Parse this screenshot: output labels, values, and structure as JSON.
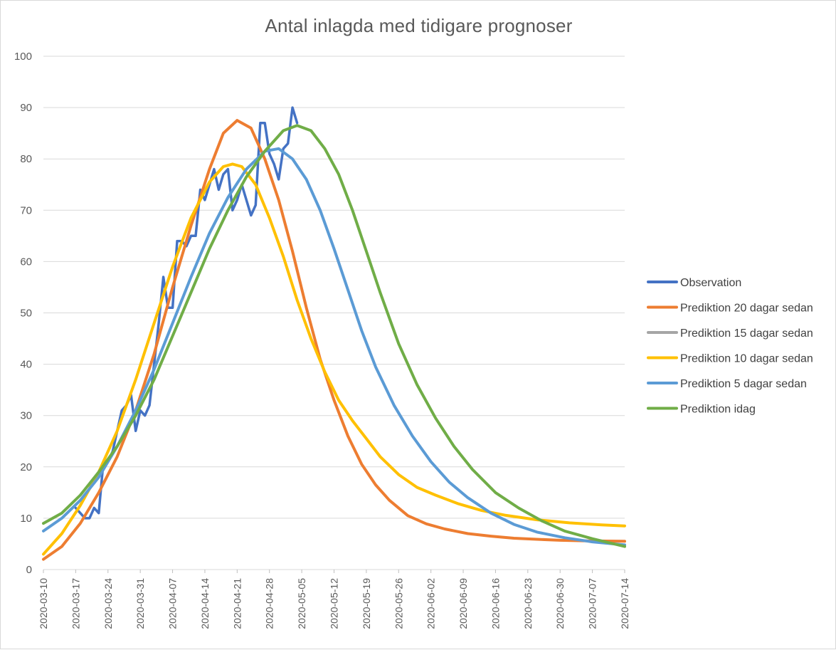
{
  "chart_data": {
    "type": "line",
    "title": "Antal inlagda med tidigare prognoser",
    "xlabel": "",
    "ylabel": "",
    "ylim": [
      0,
      100
    ],
    "yticks": [
      0,
      10,
      20,
      30,
      40,
      50,
      60,
      70,
      80,
      90,
      100
    ],
    "xlim": [
      "2020-03-10",
      "2020-07-14"
    ],
    "x_tick_labels": [
      "2020-03-10",
      "2020-03-17",
      "2020-03-24",
      "2020-03-31",
      "2020-04-07",
      "2020-04-14",
      "2020-04-21",
      "2020-04-28",
      "2020-05-05",
      "2020-05-12",
      "2020-05-19",
      "2020-05-26",
      "2020-06-02",
      "2020-06-09",
      "2020-06-16",
      "2020-06-23",
      "2020-06-30",
      "2020-07-07",
      "2020-07-14"
    ],
    "grid": true,
    "legend_position": "right",
    "series": [
      {
        "name": "Observation",
        "color": "#4472C4",
        "x": [
          "2020-03-17",
          "2020-03-18",
          "2020-03-19",
          "2020-03-20",
          "2020-03-21",
          "2020-03-22",
          "2020-03-23",
          "2020-03-24",
          "2020-03-25",
          "2020-03-26",
          "2020-03-27",
          "2020-03-28",
          "2020-03-29",
          "2020-03-30",
          "2020-03-31",
          "2020-04-01",
          "2020-04-02",
          "2020-04-03",
          "2020-04-04",
          "2020-04-05",
          "2020-04-06",
          "2020-04-07",
          "2020-04-08",
          "2020-04-09",
          "2020-04-10",
          "2020-04-11",
          "2020-04-12",
          "2020-04-13",
          "2020-04-14",
          "2020-04-15",
          "2020-04-16",
          "2020-04-17",
          "2020-04-18",
          "2020-04-19",
          "2020-04-20",
          "2020-04-21",
          "2020-04-22",
          "2020-04-23",
          "2020-04-24",
          "2020-04-25",
          "2020-04-26",
          "2020-04-27",
          "2020-04-28",
          "2020-04-29",
          "2020-04-30",
          "2020-05-01",
          "2020-05-02",
          "2020-05-03",
          "2020-05-04",
          "2020-05-05",
          "2020-05-06"
        ],
        "values": [
          12,
          11,
          10,
          10,
          12,
          11,
          21,
          21,
          23,
          27,
          31,
          32,
          34,
          27,
          31,
          30,
          32,
          40,
          48,
          57,
          51,
          51,
          64,
          64,
          63,
          65,
          65,
          74,
          72,
          75,
          78,
          74,
          77,
          78,
          70,
          72,
          75,
          72,
          69,
          71,
          87,
          87,
          81,
          79,
          76,
          82,
          83,
          90,
          87,
          null,
          null
        ]
      },
      {
        "name": "Prediktion 20 dagar sedan",
        "color": "#ED7D31",
        "x": [
          "2020-03-10",
          "2020-03-14",
          "2020-03-18",
          "2020-03-22",
          "2020-03-26",
          "2020-03-30",
          "2020-04-03",
          "2020-04-07",
          "2020-04-11",
          "2020-04-15",
          "2020-04-18",
          "2020-04-21",
          "2020-04-24",
          "2020-04-27",
          "2020-04-30",
          "2020-05-03",
          "2020-05-06",
          "2020-05-09",
          "2020-05-12",
          "2020-05-15",
          "2020-05-18",
          "2020-05-21",
          "2020-05-24",
          "2020-05-28",
          "2020-06-01",
          "2020-06-05",
          "2020-06-10",
          "2020-06-15",
          "2020-06-20",
          "2020-06-25",
          "2020-06-30",
          "2020-07-05",
          "2020-07-14"
        ],
        "values": [
          2,
          4.5,
          9,
          15,
          22,
          31,
          42,
          55,
          67,
          78,
          85,
          87.5,
          86,
          80,
          72,
          62,
          51,
          41,
          33,
          26,
          20.5,
          16.5,
          13.5,
          10.5,
          8.9,
          7.9,
          7,
          6.5,
          6.1,
          5.9,
          5.7,
          5.6,
          5.5
        ]
      },
      {
        "name": "Prediktion 15 dagar sedan",
        "color": "#A5A5A5",
        "x": [],
        "values": []
      },
      {
        "name": "Prediktion 10 dagar sedan",
        "color": "#FFC000",
        "x": [
          "2020-03-10",
          "2020-03-14",
          "2020-03-18",
          "2020-03-22",
          "2020-03-26",
          "2020-03-30",
          "2020-04-03",
          "2020-04-07",
          "2020-04-11",
          "2020-04-15",
          "2020-04-18",
          "2020-04-20",
          "2020-04-22",
          "2020-04-25",
          "2020-04-28",
          "2020-05-01",
          "2020-05-04",
          "2020-05-07",
          "2020-05-10",
          "2020-05-13",
          "2020-05-16",
          "2020-05-19",
          "2020-05-22",
          "2020-05-26",
          "2020-05-30",
          "2020-06-03",
          "2020-06-08",
          "2020-06-13",
          "2020-06-18",
          "2020-06-25",
          "2020-07-02",
          "2020-07-09",
          "2020-07-14"
        ],
        "values": [
          3,
          7,
          12.5,
          19,
          27,
          37,
          48,
          59,
          68.5,
          75.5,
          78.5,
          79,
          78.5,
          75,
          68.5,
          61,
          52.5,
          45,
          38.5,
          33,
          29,
          25.5,
          22,
          18.5,
          16,
          14.5,
          12.8,
          11.5,
          10.6,
          9.7,
          9.1,
          8.7,
          8.5
        ]
      },
      {
        "name": "Prediktion 5 dagar sedan",
        "color": "#5B9BD5",
        "x": [
          "2020-03-10",
          "2020-03-14",
          "2020-03-18",
          "2020-03-22",
          "2020-03-26",
          "2020-03-30",
          "2020-04-03",
          "2020-04-07",
          "2020-04-11",
          "2020-04-15",
          "2020-04-19",
          "2020-04-23",
          "2020-04-27",
          "2020-04-30",
          "2020-05-03",
          "2020-05-06",
          "2020-05-09",
          "2020-05-12",
          "2020-05-15",
          "2020-05-18",
          "2020-05-21",
          "2020-05-25",
          "2020-05-29",
          "2020-06-02",
          "2020-06-06",
          "2020-06-10",
          "2020-06-15",
          "2020-06-20",
          "2020-06-25",
          "2020-07-01",
          "2020-07-07",
          "2020-07-14"
        ],
        "values": [
          7.5,
          10,
          13.5,
          18,
          24,
          31,
          39,
          48,
          57,
          65.5,
          72.5,
          78,
          81.5,
          82,
          80,
          76,
          70,
          62.5,
          54.5,
          46.5,
          39.5,
          32,
          26,
          21,
          17,
          14,
          11,
          8.8,
          7.3,
          6.2,
          5.4,
          4.8
        ]
      },
      {
        "name": "Prediktion idag",
        "color": "#70AD47",
        "x": [
          "2020-03-10",
          "2020-03-14",
          "2020-03-18",
          "2020-03-22",
          "2020-03-26",
          "2020-03-30",
          "2020-04-03",
          "2020-04-07",
          "2020-04-11",
          "2020-04-15",
          "2020-04-19",
          "2020-04-23",
          "2020-04-27",
          "2020-05-01",
          "2020-05-04",
          "2020-05-07",
          "2020-05-10",
          "2020-05-13",
          "2020-05-16",
          "2020-05-19",
          "2020-05-22",
          "2020-05-26",
          "2020-05-30",
          "2020-06-03",
          "2020-06-07",
          "2020-06-11",
          "2020-06-16",
          "2020-06-21",
          "2020-06-26",
          "2020-07-01",
          "2020-07-07",
          "2020-07-14"
        ],
        "values": [
          9,
          11,
          14.5,
          19,
          24,
          30,
          37,
          45.5,
          54,
          62.5,
          70,
          76.5,
          81.5,
          85.5,
          86.5,
          85.5,
          82,
          77,
          70,
          62,
          54,
          44,
          36,
          29.5,
          24,
          19.5,
          15,
          12,
          9.5,
          7.5,
          6,
          4.5
        ]
      }
    ]
  }
}
